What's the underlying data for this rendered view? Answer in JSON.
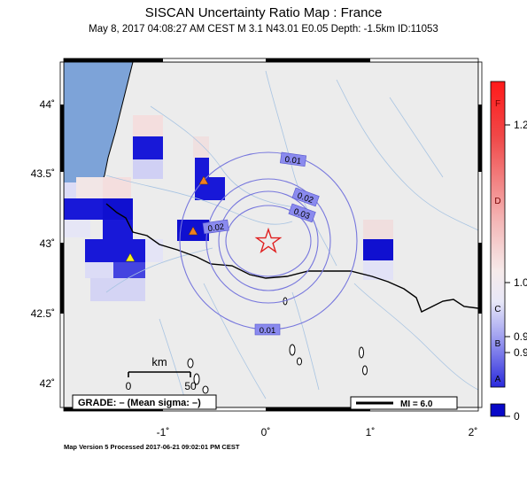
{
  "header": {
    "title": "SISCAN Uncertainty Ratio Map : France",
    "subtitle": "May  8, 2017 04:08:27 AM CEST   M 3.1   N43.01 E0.05   Depth: -1.5km   ID:11053"
  },
  "axes": {
    "lon_ticks": [
      {
        "value": -1,
        "label": "-1˚"
      },
      {
        "value": 0,
        "label": "0˚"
      },
      {
        "value": 1,
        "label": "1˚"
      },
      {
        "value": 2,
        "label": "2˚"
      }
    ],
    "lat_ticks": [
      {
        "value": 44.0,
        "label": "44˚"
      },
      {
        "value": 43.5,
        "label": "43.5˚"
      },
      {
        "value": 43.0,
        "label": "43˚"
      },
      {
        "value": 42.5,
        "label": "42.5˚"
      },
      {
        "value": 42.0,
        "label": "42˚"
      }
    ]
  },
  "contours": [
    {
      "label": "0.01"
    },
    {
      "label": "0.02"
    },
    {
      "label": "0.03"
    },
    {
      "label": "0.02"
    },
    {
      "label": "0.01"
    }
  ],
  "scale_bar": {
    "unit": "km",
    "min_label": "0",
    "max_label": "50"
  },
  "grade_box": {
    "text": "GRADE: – (Mean sigma: –)"
  },
  "mi_legend": {
    "text": "MI = 6.0"
  },
  "colorbar": {
    "letters": [
      "F",
      "D",
      "C",
      "B",
      "A"
    ],
    "values": [
      "1.2",
      "1.0",
      "0.9",
      "0.9",
      "0"
    ]
  },
  "footer": {
    "text": "Map Version 5 Processed 2017-06-21 09:02:01 PM CEST"
  },
  "colors": {
    "ocean": "#7da3d8",
    "land": "#ededed",
    "epicenter": "#e03030",
    "contour": "#7777dd",
    "cell_strong": "#1010d8",
    "cell_light": "#c8c8f2",
    "cell_pink": "#f4d6d6"
  }
}
